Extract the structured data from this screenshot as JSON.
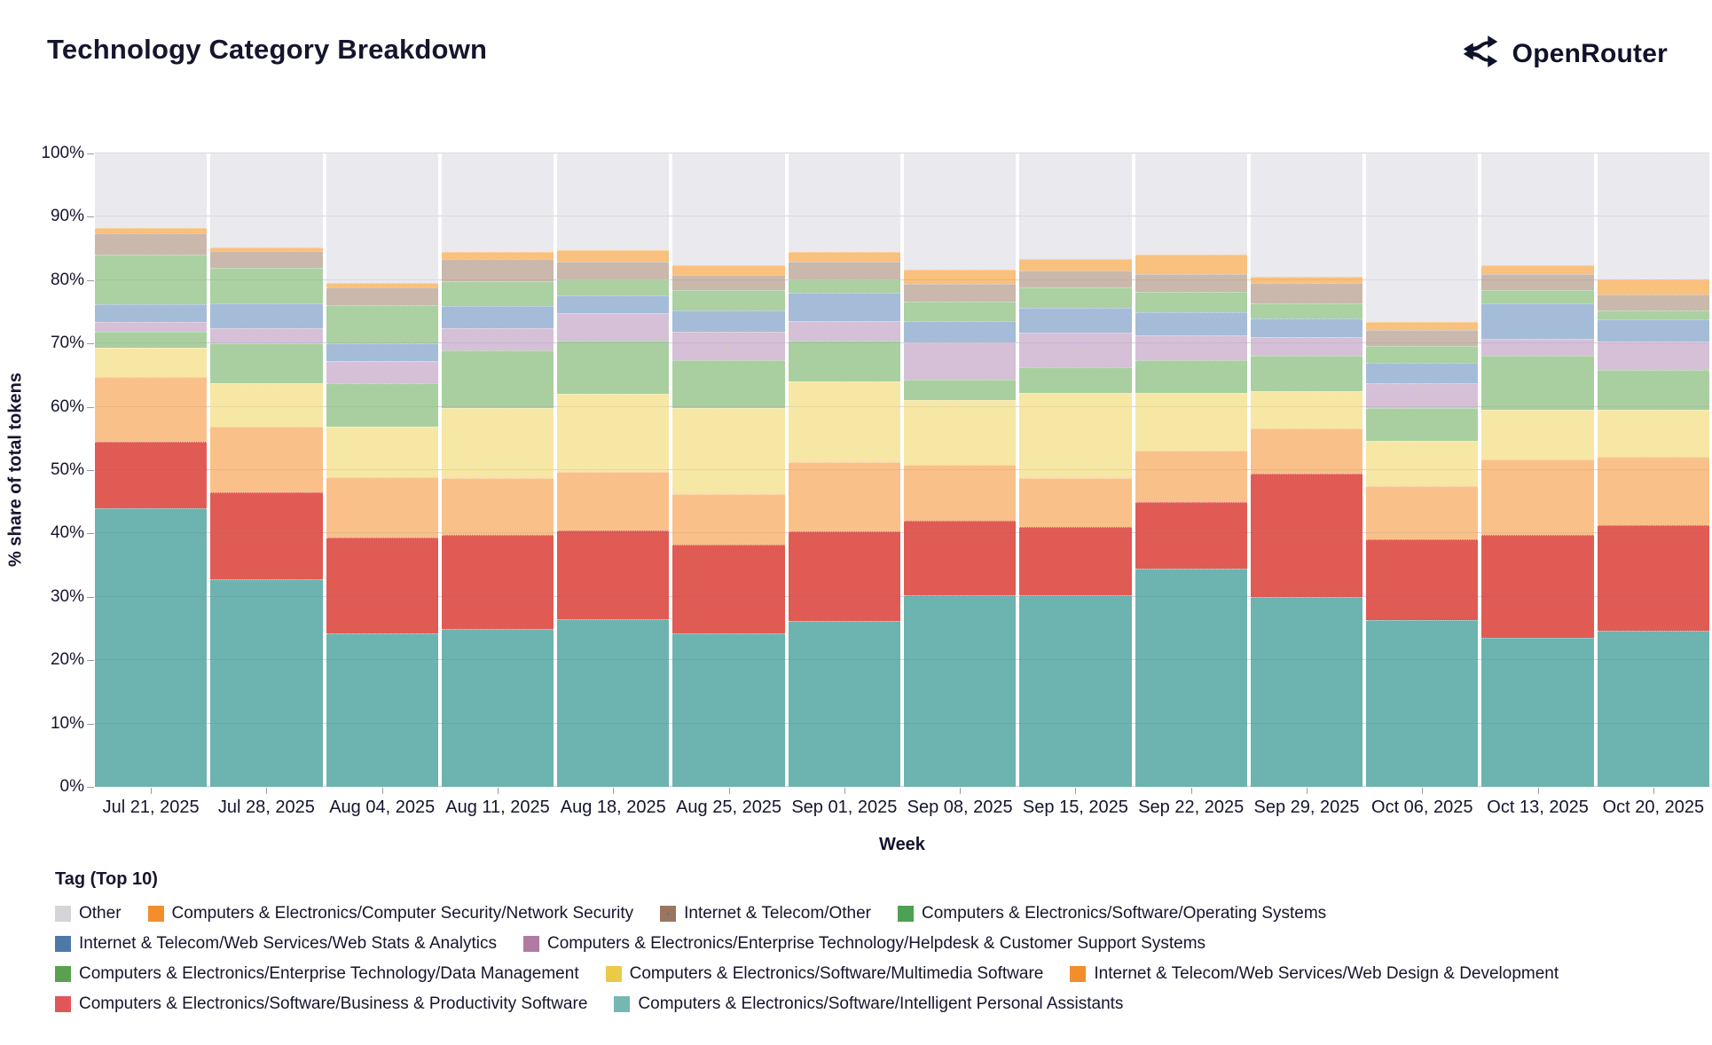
{
  "header": {
    "title": "Technology Category Breakdown",
    "brand": "OpenRouter",
    "brand_icon": "openrouter-fork-arrows",
    "brand_color": "#10122b"
  },
  "chart_data": {
    "type": "bar",
    "subtype": "stacked-100pct",
    "title": "Technology Category Breakdown",
    "xlabel": "Week",
    "ylabel": "% share of total tokens",
    "ylim": [
      0,
      100
    ],
    "yticks": [
      "0%",
      "10%",
      "20%",
      "30%",
      "40%",
      "50%",
      "60%",
      "70%",
      "80%",
      "90%",
      "100%"
    ],
    "grid": true,
    "legend_position": "bottom",
    "categories": [
      "Jul 21, 2025",
      "Jul 28, 2025",
      "Aug 04, 2025",
      "Aug 11, 2025",
      "Aug 18, 2025",
      "Aug 25, 2025",
      "Sep 01, 2025",
      "Sep 08, 2025",
      "Sep 15, 2025",
      "Sep 22, 2025",
      "Sep 29, 2025",
      "Oct 06, 2025",
      "Oct 13, 2025",
      "Oct 20, 2025"
    ],
    "series_stack_order_note": "series listed bottom-to-top of stack; values are % of total tokens per week",
    "series": [
      {
        "name": "Computers & Electronics/Software/Intelligent Personal Assistants",
        "legend_color": "#76b7b2",
        "fill": "#6db3b0",
        "pattern": "none",
        "values": [
          44.0,
          32.8,
          24.2,
          24.9,
          26.5,
          24.3,
          26.2,
          30.2,
          30.2,
          34.5,
          30.0,
          26.3,
          23.5,
          24.7
        ]
      },
      {
        "name": "Computers & Electronics/Software/Business & Productivity Software",
        "legend_color": "#e15759",
        "fill": "#e15b55",
        "pattern": "none",
        "values": [
          10.5,
          13.7,
          15.1,
          14.9,
          14.0,
          13.9,
          14.1,
          11.8,
          10.8,
          10.5,
          19.4,
          12.8,
          16.3,
          16.6
        ]
      },
      {
        "name": "Internet & Telecom/Web Services/Web Design & Development",
        "legend_color": "#f28e2b",
        "fill": "#f9c189",
        "pattern": "none",
        "values": [
          10.2,
          10.3,
          9.6,
          8.9,
          9.2,
          8.0,
          10.9,
          8.9,
          7.7,
          8.1,
          7.2,
          8.4,
          11.9,
          10.8
        ]
      },
      {
        "name": "Computers & Electronics/Software/Multimedia Software",
        "legend_color": "#edc948",
        "fill": "#f6e7a4",
        "pattern": "none",
        "values": [
          4.7,
          6.9,
          7.9,
          11.1,
          12.4,
          13.6,
          12.8,
          10.1,
          13.5,
          9.1,
          5.9,
          7.1,
          7.8,
          7.4
        ]
      },
      {
        "name": "Computers & Electronics/Enterprise Technology/Data Management",
        "legend_color": "#59a14f",
        "fill": "#a9cfa1",
        "pattern": "none",
        "values": [
          2.4,
          6.3,
          6.9,
          9.1,
          8.3,
          7.6,
          6.4,
          3.3,
          4.1,
          5.2,
          5.6,
          5.2,
          8.6,
          6.4
        ]
      },
      {
        "name": "Computers & Electronics/Enterprise Technology/Helpdesk & Customer Support Systems",
        "legend_color": "#b07aa1",
        "fill": "#d6c0d7",
        "pattern": "dots",
        "values": [
          1.6,
          2.4,
          3.5,
          3.5,
          4.4,
          4.5,
          3.2,
          5.9,
          5.4,
          3.9,
          2.9,
          3.9,
          2.7,
          4.4
        ]
      },
      {
        "name": "Internet & Telecom/Web Services/Web Stats & Analytics",
        "legend_color": "#4e79a7",
        "fill": "#a4bcd7",
        "pattern": "none",
        "values": [
          2.8,
          4.0,
          2.9,
          3.5,
          2.8,
          3.3,
          4.4,
          3.4,
          4.0,
          3.7,
          3.0,
          3.2,
          5.6,
          3.5
        ]
      },
      {
        "name": "Computers & Electronics/Software/Operating Systems",
        "legend_color": "#4ea052",
        "fill": "#abd0a2",
        "pattern": "none",
        "values": [
          7.8,
          5.6,
          5.9,
          4.0,
          2.5,
          3.3,
          2.1,
          3.0,
          3.2,
          3.2,
          2.3,
          2.7,
          2.0,
          1.4
        ]
      },
      {
        "name": "Internet & Telecom/Other",
        "legend_color": "#9c755f",
        "fill": "#cab8ac",
        "pattern": "mottle",
        "values": [
          3.4,
          2.6,
          2.8,
          3.5,
          2.8,
          2.3,
          2.8,
          2.8,
          2.6,
          2.8,
          3.3,
          2.5,
          2.5,
          2.5
        ]
      },
      {
        "name": "Computers & Electronics/Computer Security/Network Security",
        "legend_color": "#f28e2b",
        "fill": "#fac07d",
        "pattern": "none",
        "values": [
          0.8,
          0.6,
          0.8,
          1.0,
          1.8,
          1.6,
          1.6,
          2.2,
          1.8,
          3.0,
          1.0,
          1.3,
          1.4,
          2.4
        ]
      },
      {
        "name": "Other",
        "legend_color": "#d4d4d9",
        "fill": "#e9e9ee",
        "pattern": "none",
        "values": [
          11.8,
          14.8,
          20.4,
          15.6,
          15.3,
          17.6,
          15.5,
          18.4,
          16.7,
          16.0,
          19.4,
          26.6,
          17.7,
          19.9
        ]
      }
    ]
  },
  "legend": {
    "title": "Tag (Top 10)"
  }
}
